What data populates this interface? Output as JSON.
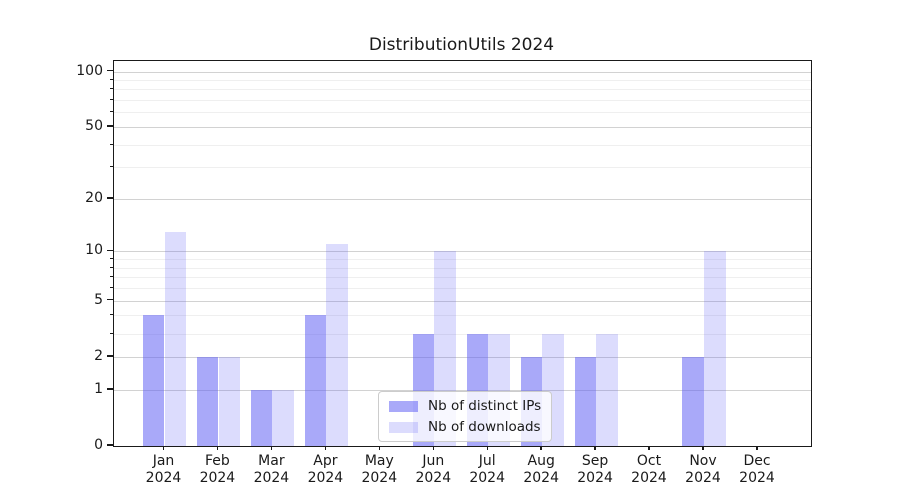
{
  "title": "DistributionUtils 2024",
  "chart_data": {
    "type": "bar",
    "title": "DistributionUtils 2024",
    "categories": [
      "Jan",
      "Feb",
      "Mar",
      "Apr",
      "May",
      "Jun",
      "Jul",
      "Aug",
      "Sep",
      "Oct",
      "Nov",
      "Dec"
    ],
    "category_year": "2024",
    "series": [
      {
        "name": "Nb of distinct IPs",
        "color": "rgba(92,92,244,0.53)",
        "values": [
          4,
          2,
          1,
          4,
          0,
          3,
          3,
          2,
          2,
          0,
          2,
          0
        ]
      },
      {
        "name": "Nb of downloads",
        "color": "rgba(92,92,244,0.21)",
        "values": [
          13,
          2,
          1,
          11,
          0,
          10,
          3,
          3,
          3,
          0,
          10,
          0
        ]
      }
    ],
    "yscale": "log1p",
    "ylim": [
      0,
      114
    ],
    "ytick_values": [
      0,
      1,
      2,
      5,
      10,
      20,
      50,
      100
    ],
    "ytick_labels": [
      "0",
      "1",
      "2",
      "5",
      "10",
      "20",
      "50",
      "100"
    ],
    "minor_ytick_values": [
      3,
      4,
      6,
      7,
      8,
      9,
      30,
      40,
      60,
      70,
      80,
      90
    ],
    "grid": true,
    "legend": {
      "position": "lower-center",
      "entries": [
        "Nb of distinct IPs",
        "Nb of downloads"
      ]
    },
    "colors": {
      "bar_dark": "rgba(92,92,244,0.53)",
      "bar_light": "rgba(92,92,244,0.21)",
      "major_grid": "#d2d2d2",
      "minor_grid": "#efefef",
      "axis": "#1a1a1a",
      "text": "#1a1a1a",
      "legend_border": "#cccccc"
    }
  }
}
